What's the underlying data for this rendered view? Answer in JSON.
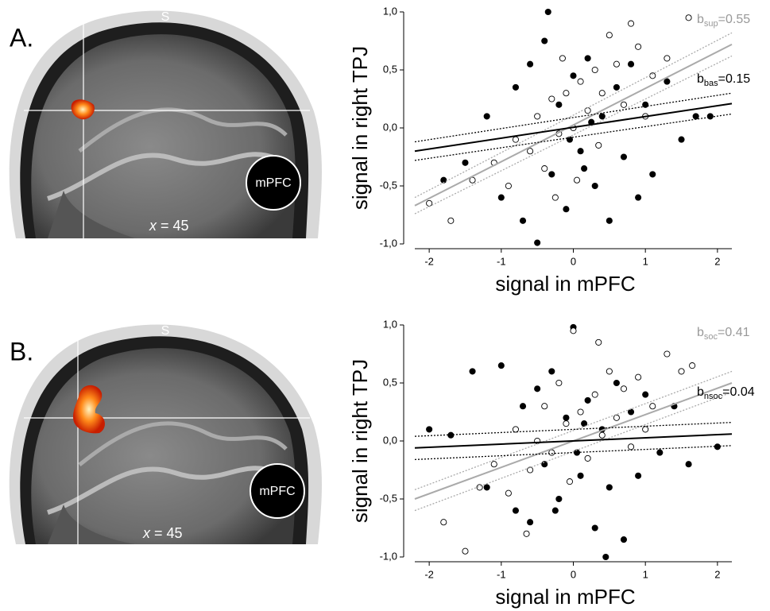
{
  "panels": [
    {
      "label": "A.",
      "image": {
        "orientation": "S",
        "region": "mPFC",
        "slice_var": "x",
        "slice_text": " = 45"
      }
    },
    {
      "label": "B.",
      "image": {
        "orientation": "S",
        "region": "mPFC",
        "slice_var": "x",
        "slice_text": " = 45"
      }
    }
  ],
  "chart_data": [
    {
      "type": "scatter",
      "x_label": "signal in mPFC",
      "y_label": "signal in right TPJ",
      "xlim": [
        -2.2,
        2.2
      ],
      "xticks": [
        -2,
        -1,
        0,
        1,
        2
      ],
      "ylim": [
        -1,
        1
      ],
      "yticks": [
        {
          "value": -1,
          "label": "-1,0"
        },
        {
          "value": -0.5,
          "label": "-0,5"
        },
        {
          "value": 0,
          "label": "0,0"
        },
        {
          "value": 0.5,
          "label": "0,5"
        },
        {
          "value": 1,
          "label": "1,0"
        }
      ],
      "series": [
        {
          "color": "#000000",
          "marker": "filled",
          "x": [
            -1.8,
            -1.5,
            -1.2,
            -1.0,
            -0.8,
            -0.7,
            -0.6,
            -0.5,
            -0.4,
            -0.3,
            -0.2,
            -0.1,
            0.0,
            0.1,
            0.2,
            0.3,
            0.4,
            0.5,
            0.6,
            0.7,
            0.8,
            0.9,
            1.0,
            1.1,
            1.3,
            1.5,
            1.7,
            1.9,
            -0.35,
            0.15,
            -0.05,
            0.25
          ],
          "values": [
            -0.45,
            -0.3,
            0.1,
            -0.6,
            0.35,
            -0.8,
            0.55,
            -0.99,
            0.75,
            -0.4,
            0.2,
            -0.7,
            0.45,
            -0.2,
            0.6,
            -0.5,
            0.1,
            -0.8,
            0.35,
            -0.25,
            0.55,
            -0.6,
            0.2,
            -0.4,
            0.4,
            -0.1,
            0.1,
            0.1,
            1.0,
            -0.35,
            -0.1,
            0.05
          ]
        },
        {
          "color": "#000000",
          "marker": "open",
          "x": [
            -2.0,
            -1.7,
            -1.4,
            -1.1,
            -0.9,
            -0.8,
            -0.6,
            -0.5,
            -0.4,
            -0.3,
            -0.2,
            -0.1,
            0.0,
            0.1,
            0.2,
            0.3,
            0.4,
            0.5,
            0.6,
            0.7,
            0.9,
            1.1,
            1.3,
            1.6,
            -0.25,
            0.05,
            -0.15,
            0.35,
            0.8,
            1.0
          ],
          "values": [
            -0.65,
            -0.8,
            -0.45,
            -0.3,
            -0.5,
            -0.1,
            -0.2,
            0.1,
            -0.35,
            0.25,
            -0.05,
            0.3,
            0.0,
            0.4,
            0.15,
            0.5,
            0.3,
            0.8,
            0.55,
            0.2,
            0.7,
            0.45,
            0.6,
            0.95,
            -0.6,
            -0.45,
            0.6,
            -0.15,
            0.9,
            0.1
          ]
        }
      ],
      "fit_lines": [
        {
          "color": "#aaaaaa",
          "style": "dotted",
          "x": [
            -2.2,
            2.2
          ],
          "values": [
            -0.6,
            0.82
          ]
        },
        {
          "color": "#aaaaaa",
          "style": "dotted",
          "x": [
            -2.2,
            2.2
          ],
          "values": [
            -0.74,
            0.62
          ]
        },
        {
          "color": "#aaaaaa",
          "style": "solid",
          "x": [
            -2.2,
            2.2
          ],
          "values": [
            -0.67,
            0.72
          ]
        },
        {
          "color": "#000000",
          "style": "dotted",
          "x": [
            -2.2,
            2.2
          ],
          "values": [
            -0.12,
            0.3
          ]
        },
        {
          "color": "#000000",
          "style": "dotted",
          "x": [
            -2.2,
            2.2
          ],
          "values": [
            -0.28,
            0.12
          ]
        },
        {
          "color": "#000000",
          "style": "solid",
          "x": [
            -2.2,
            2.2
          ],
          "values": [
            -0.2,
            0.21
          ]
        }
      ],
      "annotations": [
        {
          "symbol": "b",
          "subscript": "sup",
          "text": "=0.55",
          "color": "#999999"
        },
        {
          "symbol": "b",
          "subscript": "bas",
          "text": "=0.15",
          "color": "#000000"
        }
      ]
    },
    {
      "type": "scatter",
      "x_label": "signal in mPFC",
      "y_label": "signal in right TPJ",
      "xlim": [
        -2.2,
        2.2
      ],
      "xticks": [
        -2,
        -1,
        0,
        1,
        2
      ],
      "ylim": [
        -1,
        1
      ],
      "yticks": [
        {
          "value": -1,
          "label": "-1,0"
        },
        {
          "value": -0.5,
          "label": "-0,5"
        },
        {
          "value": 0,
          "label": "0,0"
        },
        {
          "value": 0.5,
          "label": "0,5"
        },
        {
          "value": 1,
          "label": "1,0"
        }
      ],
      "series": [
        {
          "color": "#000000",
          "marker": "filled",
          "x": [
            -2.0,
            -1.7,
            -1.4,
            -1.2,
            -1.0,
            -0.8,
            -0.7,
            -0.6,
            -0.5,
            -0.4,
            -0.3,
            -0.2,
            -0.1,
            0.0,
            0.1,
            0.2,
            0.3,
            0.4,
            0.45,
            0.5,
            0.6,
            0.7,
            0.8,
            0.9,
            1.0,
            1.2,
            1.4,
            1.6,
            2.0,
            -0.25,
            0.15,
            0.05
          ],
          "values": [
            0.1,
            0.05,
            0.6,
            -0.4,
            0.65,
            -0.6,
            0.3,
            -0.7,
            0.45,
            -0.2,
            0.6,
            -0.5,
            0.2,
            0.98,
            -0.3,
            0.35,
            -0.75,
            0.1,
            -1.0,
            -0.4,
            0.5,
            -0.85,
            0.25,
            -0.3,
            0.4,
            -0.1,
            0.3,
            -0.2,
            -0.05,
            -0.6,
            0.15,
            -0.1
          ]
        },
        {
          "color": "#000000",
          "marker": "open",
          "x": [
            -1.8,
            -1.5,
            -1.3,
            -1.1,
            -0.9,
            -0.8,
            -0.6,
            -0.5,
            -0.4,
            -0.3,
            -0.2,
            -0.1,
            0.0,
            0.1,
            0.2,
            0.3,
            0.4,
            0.5,
            0.6,
            0.7,
            0.8,
            0.9,
            1.1,
            1.3,
            1.5,
            1.65,
            -0.65,
            -0.05,
            0.35,
            1.0
          ],
          "values": [
            -0.7,
            -0.95,
            -0.4,
            -0.2,
            -0.45,
            0.1,
            -0.25,
            0.0,
            0.3,
            -0.1,
            0.5,
            0.15,
            0.95,
            0.25,
            -0.15,
            0.4,
            0.05,
            0.6,
            0.2,
            0.45,
            -0.05,
            0.55,
            0.3,
            0.75,
            0.6,
            0.65,
            -0.8,
            -0.35,
            0.85,
            0.1
          ]
        }
      ],
      "fit_lines": [
        {
          "color": "#aaaaaa",
          "style": "dotted",
          "x": [
            -2.2,
            2.2
          ],
          "values": [
            -0.42,
            0.6
          ]
        },
        {
          "color": "#aaaaaa",
          "style": "dotted",
          "x": [
            -2.2,
            2.2
          ],
          "values": [
            -0.6,
            0.42
          ]
        },
        {
          "color": "#aaaaaa",
          "style": "solid",
          "x": [
            -2.2,
            2.2
          ],
          "values": [
            -0.5,
            0.5
          ]
        },
        {
          "color": "#000000",
          "style": "dotted",
          "x": [
            -2.2,
            2.2
          ],
          "values": [
            0.04,
            0.16
          ]
        },
        {
          "color": "#000000",
          "style": "dotted",
          "x": [
            -2.2,
            2.2
          ],
          "values": [
            -0.16,
            -0.04
          ]
        },
        {
          "color": "#000000",
          "style": "solid",
          "x": [
            -2.2,
            2.2
          ],
          "values": [
            -0.06,
            0.06
          ]
        }
      ],
      "annotations": [
        {
          "symbol": "b",
          "subscript": "soc",
          "text": "=0.41",
          "color": "#999999"
        },
        {
          "symbol": "b",
          "subscript": "nsoc",
          "text": "=0.04",
          "color": "#000000"
        }
      ]
    }
  ]
}
